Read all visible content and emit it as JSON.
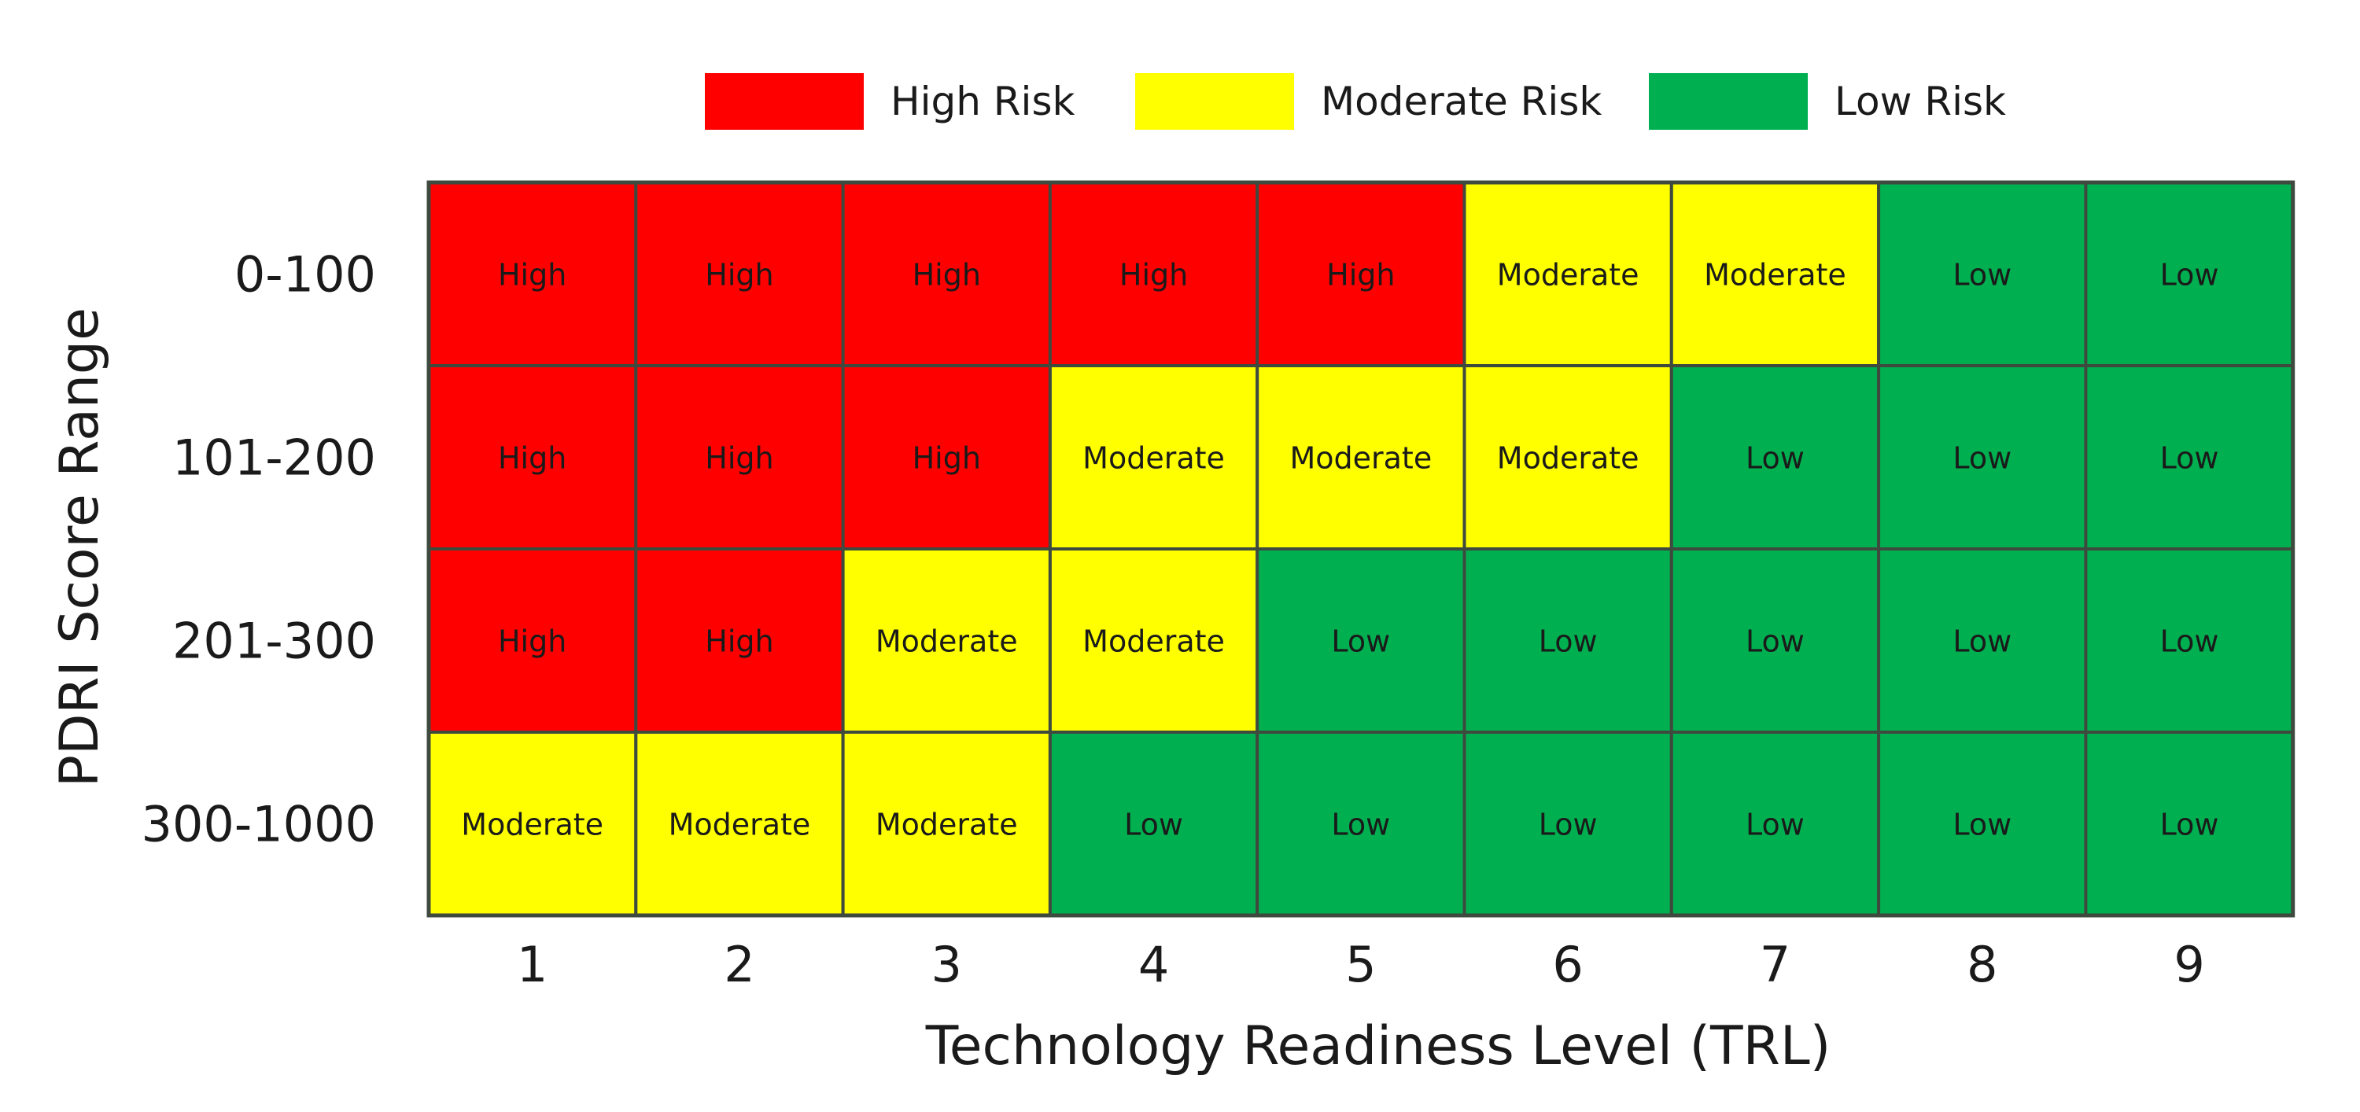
{
  "legend": [
    {
      "label": "High Risk",
      "color": "#ff0000"
    },
    {
      "label": "Moderate Risk",
      "color": "#ffff00"
    },
    {
      "label": "Low Risk",
      "color": "#00b050"
    }
  ],
  "chart_data": {
    "type": "heatmap",
    "title": "",
    "xlabel": "Technology Readiness Level (TRL)",
    "ylabel": "PDRI Score Range",
    "x": [
      "1",
      "2",
      "3",
      "4",
      "5",
      "6",
      "7",
      "8",
      "9"
    ],
    "y": [
      "0-100",
      "101-200",
      "201-300",
      "300-1000"
    ],
    "values": [
      [
        "High",
        "High",
        "High",
        "High",
        "High",
        "Moderate",
        "Moderate",
        "Low",
        "Low"
      ],
      [
        "High",
        "High",
        "High",
        "Moderate",
        "Moderate",
        "Moderate",
        "Low",
        "Low",
        "Low"
      ],
      [
        "High",
        "High",
        "Moderate",
        "Moderate",
        "Low",
        "Low",
        "Low",
        "Low",
        "Low"
      ],
      [
        "Moderate",
        "Moderate",
        "Moderate",
        "Low",
        "Low",
        "Low",
        "Low",
        "Low",
        "Low"
      ]
    ],
    "colors": {
      "High": "#ff0000",
      "Moderate": "#ffff00",
      "Low": "#00b050"
    },
    "legend_position": "top",
    "grid": true
  }
}
